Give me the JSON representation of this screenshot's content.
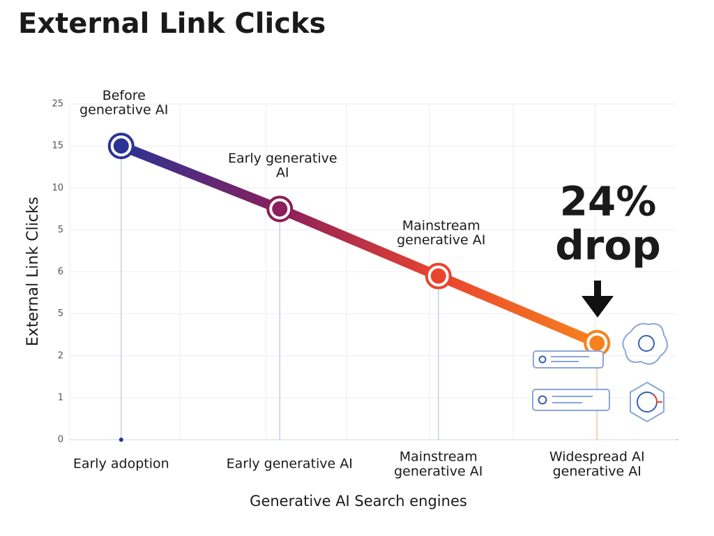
{
  "chart_data": {
    "type": "line",
    "title": "External Link Clicks",
    "y_label": "External Link Clicks",
    "x_label": "Generative AI Search engines",
    "categories": [
      "Early adoption",
      "Early generative AI",
      "Mainstream\ngenerative AI",
      "Widespread AI\ngenerative AI"
    ],
    "values": [
      7.0,
      5.5,
      3.9,
      2.3
    ],
    "point_labels": [
      "Before\ngenerative AI",
      "Early generative\nAI",
      "Mainstream\ngenerative AI",
      null
    ],
    "colors": [
      "#2b3394",
      "#8a1f5c",
      "#e8442e",
      "#f7821e"
    ],
    "ylim": [
      0,
      8
    ],
    "yticks": [
      0,
      1,
      2,
      {
        "value": 3,
        "label": "5"
      },
      {
        "value": 4,
        "label": "6"
      },
      {
        "value": 5,
        "label": "5"
      },
      {
        "value": 6,
        "label": "10"
      },
      {
        "value": 7,
        "label": "15"
      },
      {
        "value": 8,
        "label": "25"
      }
    ],
    "grid": true,
    "annotation": "24%\ndrop"
  }
}
